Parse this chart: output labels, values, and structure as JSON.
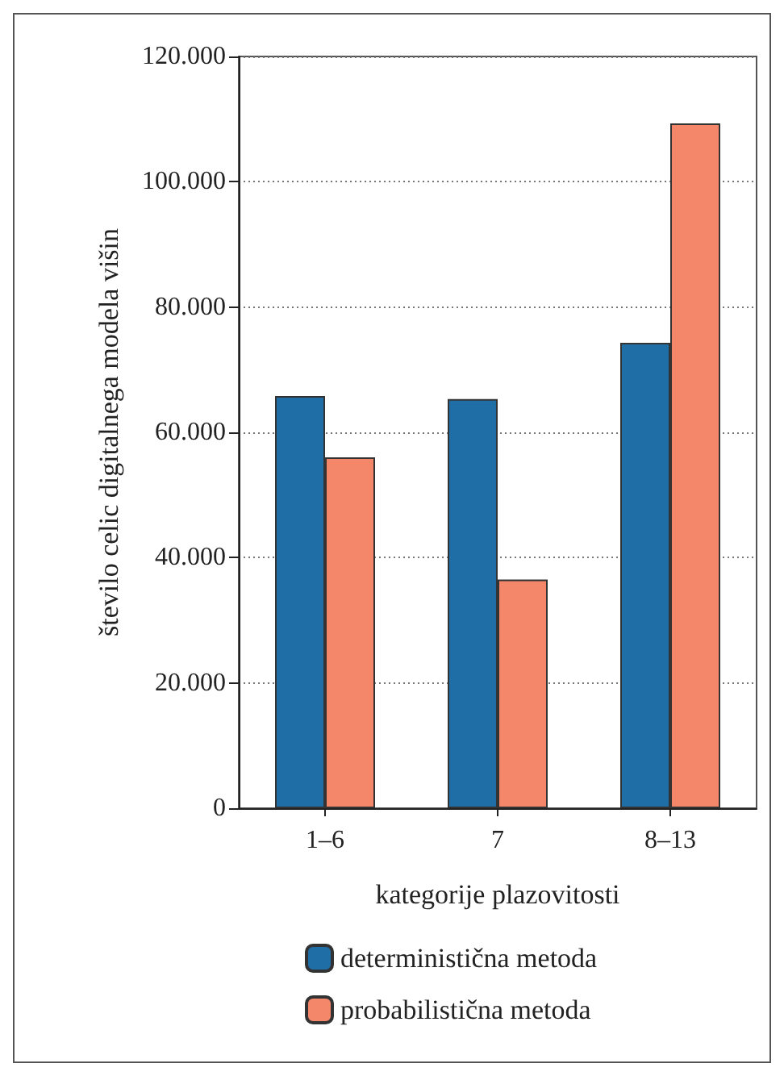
{
  "chart_data": {
    "type": "bar",
    "xlabel": "kategorije plazovitosti",
    "ylabel": "število celic digitalnega modela višin",
    "categories": [
      "1–6",
      "7",
      "8–13"
    ],
    "series": [
      {
        "name": "deterministična metoda",
        "color": "#1f6fa6",
        "values": [
          65800,
          65300,
          74300
        ]
      },
      {
        "name": "probabilistična metoda",
        "color": "#f4876a",
        "values": [
          56000,
          36500,
          109300
        ]
      }
    ],
    "ylim": [
      0,
      120000
    ],
    "yticks": [
      {
        "value": 0,
        "label": "0"
      },
      {
        "value": 20000,
        "label": "20.000"
      },
      {
        "value": 40000,
        "label": "40.000"
      },
      {
        "value": 60000,
        "label": "60.000"
      },
      {
        "value": 80000,
        "label": "80.000"
      },
      {
        "value": 100000,
        "label": "100.000"
      },
      {
        "value": 120000,
        "label": "120.000"
      }
    ],
    "grid": "y",
    "legend": "bottom"
  }
}
